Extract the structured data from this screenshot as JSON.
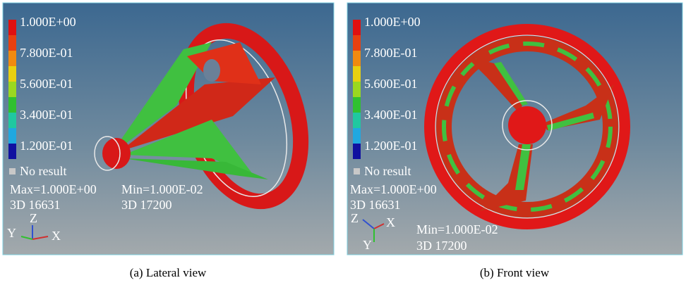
{
  "panels": [
    {
      "legend": {
        "labels": [
          "1.000E+00",
          "7.800E-01",
          "5.600E-01",
          "3.400E-01",
          "1.200E-01"
        ],
        "no_result": "No result"
      },
      "max": "Max=1.000E+00",
      "max_node": "3D 16631",
      "min": "Min=1.000E-02",
      "min_node": "3D 17200",
      "axes": {
        "z": "Z",
        "y": "Y",
        "x": "X"
      },
      "caption": "(a) Lateral view"
    },
    {
      "legend": {
        "labels": [
          "1.000E+00",
          "7.800E-01",
          "5.600E-01",
          "3.400E-01",
          "1.200E-01"
        ],
        "no_result": "No result"
      },
      "max": "Max=1.000E+00",
      "max_node": "3D 16631",
      "min": "Min=1.000E-02",
      "min_node": "3D 17200",
      "axes": {
        "z": "Z",
        "y": "Y",
        "x": "X"
      },
      "caption": "(b) Front view"
    }
  ]
}
